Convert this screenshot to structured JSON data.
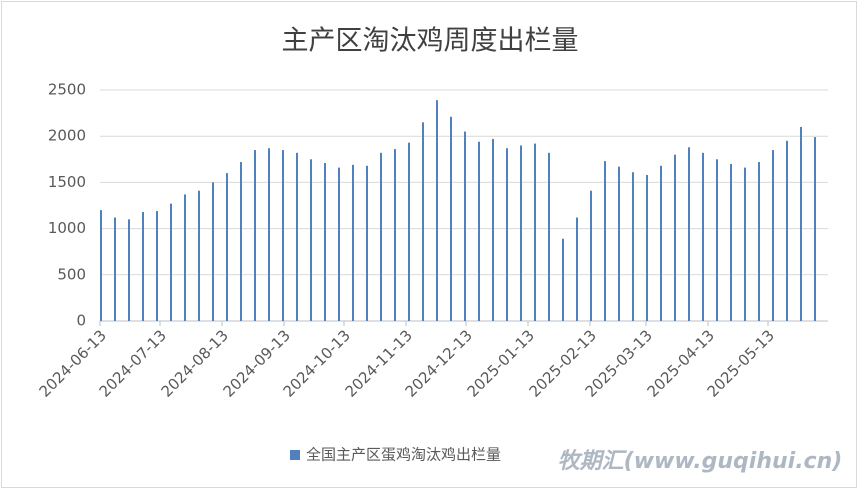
{
  "chart_data": {
    "type": "bar",
    "title": "主产区淘汰鸡周度出栏量",
    "x": [
      "2024-06-13",
      "2024-06-20",
      "2024-06-27",
      "2024-07-04",
      "2024-07-11",
      "2024-07-18",
      "2024-07-25",
      "2024-08-01",
      "2024-08-08",
      "2024-08-15",
      "2024-08-22",
      "2024-08-29",
      "2024-09-05",
      "2024-09-12",
      "2024-09-19",
      "2024-09-26",
      "2024-10-03",
      "2024-10-10",
      "2024-10-17",
      "2024-10-24",
      "2024-10-31",
      "2024-11-07",
      "2024-11-14",
      "2024-11-21",
      "2024-11-28",
      "2024-12-05",
      "2024-12-12",
      "2024-12-19",
      "2024-12-26",
      "2025-01-02",
      "2025-01-09",
      "2025-01-16",
      "2025-01-23",
      "2025-01-30",
      "2025-02-06",
      "2025-02-13",
      "2025-02-20",
      "2025-02-27",
      "2025-03-06",
      "2025-03-13",
      "2025-03-20",
      "2025-03-27",
      "2025-04-03",
      "2025-04-10",
      "2025-04-17",
      "2025-04-24",
      "2025-05-01",
      "2025-05-08",
      "2025-05-15",
      "2025-05-22",
      "2025-05-29",
      "2025-06-05"
    ],
    "series": [
      {
        "name": "全国主产区蛋鸡淘汰鸡出栏量",
        "color": "#4f81bd",
        "values": [
          1200,
          1120,
          1100,
          1180,
          1190,
          1270,
          1370,
          1410,
          1500,
          1600,
          1720,
          1850,
          1870,
          1850,
          1820,
          1750,
          1710,
          1660,
          1690,
          1680,
          1820,
          1860,
          1930,
          2150,
          2390,
          2210,
          2050,
          1940,
          1970,
          1870,
          1900,
          1920,
          1820,
          890,
          1120,
          1410,
          1730,
          1670,
          1610,
          1580,
          1680,
          1800,
          1880,
          1820,
          1750,
          1700,
          1660,
          1720,
          1850,
          1950,
          2100,
          1990
        ]
      }
    ],
    "xlim": [
      "2024-06-13",
      "2025-06-12"
    ],
    "xticks": [
      "2024-06-13",
      "2024-07-13",
      "2024-08-13",
      "2024-09-13",
      "2024-10-13",
      "2024-11-13",
      "2024-12-13",
      "2025-01-13",
      "2025-02-13",
      "2025-03-13",
      "2025-04-13",
      "2025-05-13"
    ],
    "ylim": [
      0,
      2500
    ],
    "yticks": [
      0,
      500,
      1000,
      1500,
      2000,
      2500
    ],
    "grid": true,
    "legend": "bottom",
    "watermark": "牧期汇(www.guqihui.cn)"
  }
}
